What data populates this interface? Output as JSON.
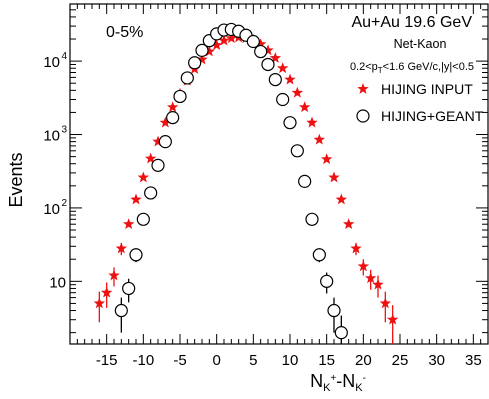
{
  "chart_data": {
    "type": "scatter",
    "ylabel": "Events",
    "xlabel": {
      "base": "N",
      "sub1": "K",
      "sup1": "+",
      "sep": "-N",
      "sub2": "K",
      "sup2": "-"
    },
    "xlim": [
      -20,
      37
    ],
    "ylim": [
      1.4,
      60000
    ],
    "yscale": "log",
    "x_ticks": [
      -15,
      -10,
      -5,
      0,
      5,
      10,
      15,
      20,
      25,
      30,
      35
    ],
    "x_tick_labels": [
      "-15",
      "-10",
      "-5",
      "0",
      "5",
      "10",
      "15",
      "20",
      "25",
      "30",
      "35"
    ],
    "y_ticks": [
      10,
      100,
      1000,
      10000
    ],
    "y_tick_labels": [
      {
        "base": "10",
        "exp": ""
      },
      {
        "base": "10",
        "exp": "2"
      },
      {
        "base": "10",
        "exp": "3"
      },
      {
        "base": "10",
        "exp": "4"
      }
    ],
    "grid": false,
    "legend_position": "top-right",
    "annotations": {
      "centrality": "0-5%",
      "system": "Au+Au 19.6 GeV",
      "observable": "Net-Kaon",
      "cuts": {
        "pre": "0.2<p",
        "sub": "T",
        "post": "<1.6 GeV/c,|y|<0.5"
      }
    },
    "series": [
      {
        "name": "HIJING INPUT",
        "marker": "star",
        "color": "#ee1111",
        "points": [
          [
            -16,
            5
          ],
          [
            -15,
            7
          ],
          [
            -14,
            12
          ],
          [
            -13,
            28
          ],
          [
            -12,
            60
          ],
          [
            -11,
            130
          ],
          [
            -10,
            260
          ],
          [
            -9,
            470
          ],
          [
            -8,
            800
          ],
          [
            -7,
            1450
          ],
          [
            -6,
            2350
          ],
          [
            -5,
            3600
          ],
          [
            -4,
            5400
          ],
          [
            -3,
            7800
          ],
          [
            -2,
            10500
          ],
          [
            -1,
            13500
          ],
          [
            0,
            16500
          ],
          [
            1,
            19000
          ],
          [
            2,
            20500
          ],
          [
            3,
            21000
          ],
          [
            4,
            20500
          ],
          [
            5,
            19500
          ],
          [
            6,
            17000
          ],
          [
            7,
            14000
          ],
          [
            8,
            11000
          ],
          [
            9,
            8000
          ],
          [
            10,
            5600
          ],
          [
            11,
            3700
          ],
          [
            12,
            2350
          ],
          [
            13,
            1450
          ],
          [
            14,
            850
          ],
          [
            15,
            460
          ],
          [
            16,
            260
          ],
          [
            17,
            130
          ],
          [
            18,
            60
          ],
          [
            19,
            28
          ],
          [
            20,
            16
          ],
          [
            21,
            11
          ],
          [
            22,
            9
          ],
          [
            23,
            5
          ],
          [
            24,
            3
          ]
        ]
      },
      {
        "name": "HIJING+GEANT",
        "marker": "open-circle",
        "color": "#000000",
        "points": [
          [
            -13,
            4
          ],
          [
            -12,
            8
          ],
          [
            -11,
            23
          ],
          [
            -10,
            70
          ],
          [
            -9,
            160
          ],
          [
            -8,
            380
          ],
          [
            -7,
            800
          ],
          [
            -6,
            1700
          ],
          [
            -5,
            3300
          ],
          [
            -4,
            5900
          ],
          [
            -3,
            9500
          ],
          [
            -2,
            14000
          ],
          [
            -1,
            19000
          ],
          [
            0,
            23500
          ],
          [
            1,
            26500
          ],
          [
            2,
            27000
          ],
          [
            3,
            25500
          ],
          [
            4,
            22500
          ],
          [
            5,
            18500
          ],
          [
            6,
            13500
          ],
          [
            7,
            9000
          ],
          [
            8,
            5600
          ],
          [
            9,
            3000
          ],
          [
            10,
            1450
          ],
          [
            11,
            600
          ],
          [
            12,
            230
          ],
          [
            13,
            70
          ],
          [
            14,
            23
          ],
          [
            15,
            10
          ],
          [
            16,
            4
          ],
          [
            17,
            2
          ]
        ]
      }
    ]
  }
}
